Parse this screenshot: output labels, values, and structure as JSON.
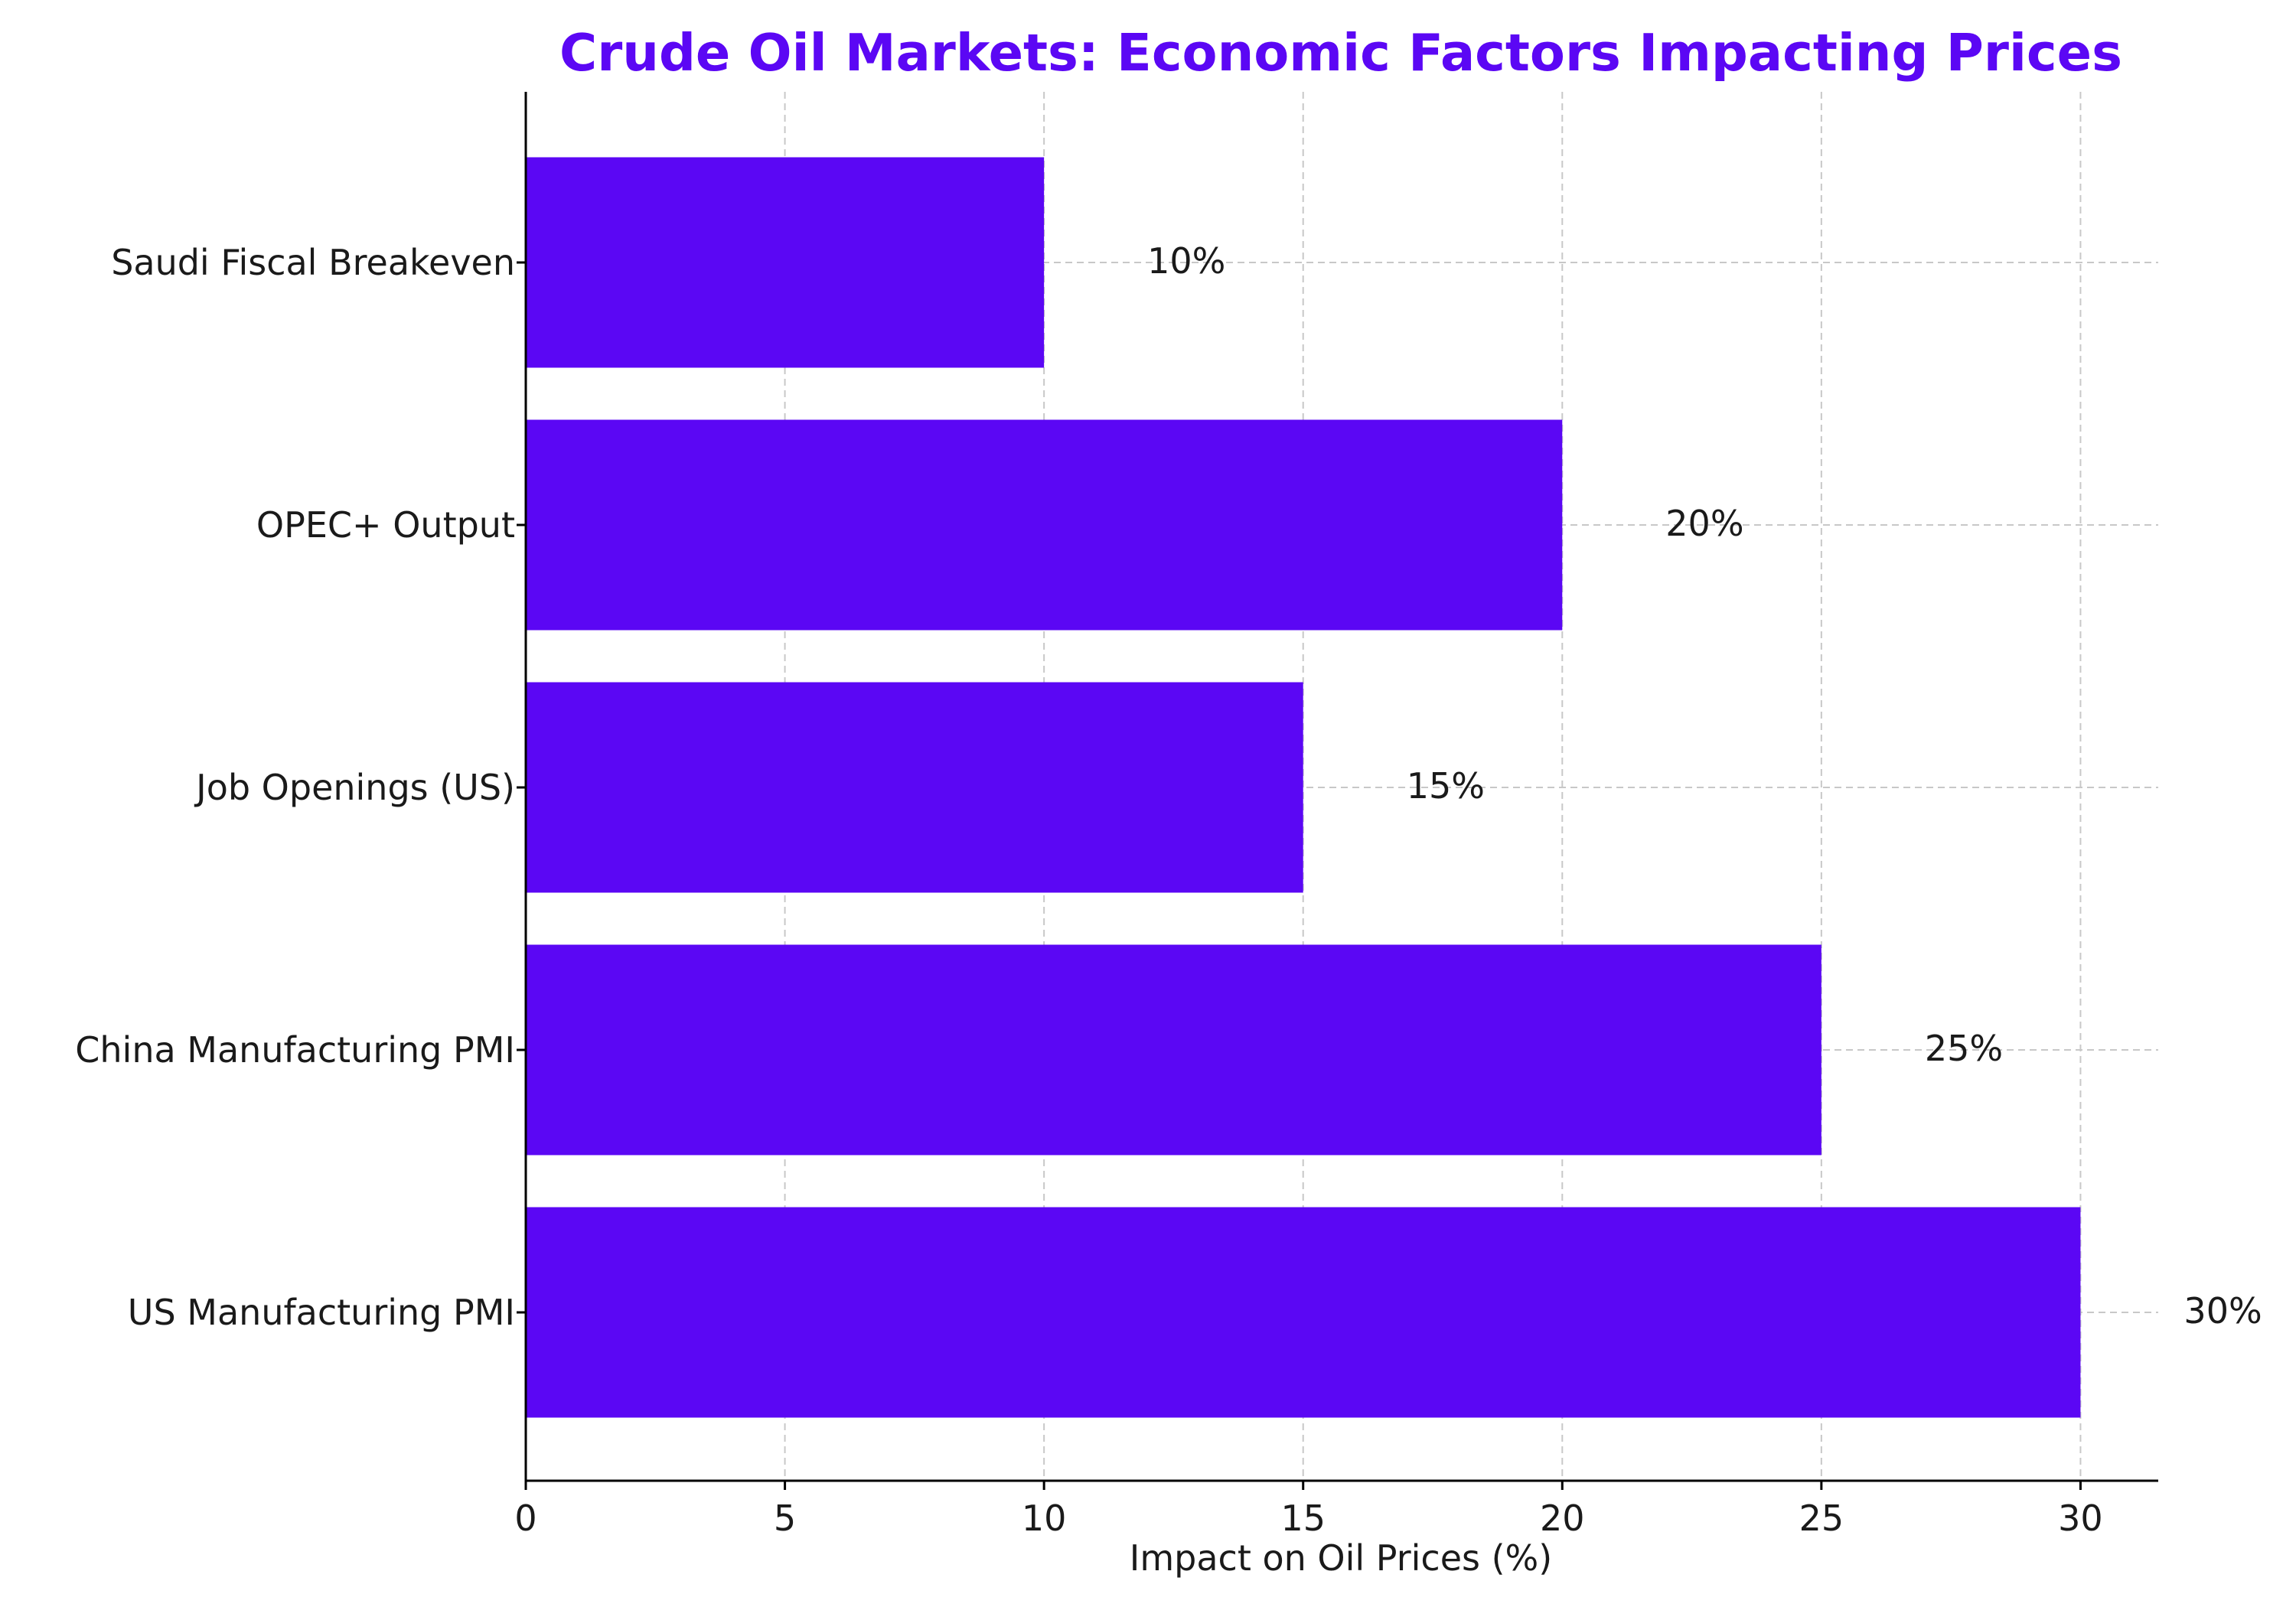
{
  "chart_data": {
    "type": "bar",
    "orientation": "horizontal",
    "title": "Crude Oil Markets: Economic Factors Impacting Prices",
    "xlabel": "Impact on Oil Prices (%)",
    "ylabel": "",
    "categories": [
      "US Manufacturing PMI",
      "China Manufacturing PMI",
      "Job Openings (US)",
      "OPEC+ Output",
      "Saudi Fiscal Breakeven"
    ],
    "values": [
      30,
      25,
      15,
      20,
      10
    ],
    "value_labels": [
      "30%",
      "25%",
      "15%",
      "20%",
      "10%"
    ],
    "xlim": [
      0,
      31.5
    ],
    "x_ticks": [
      0,
      5,
      10,
      15,
      20,
      25,
      30
    ],
    "x_tick_labels": [
      "0",
      "5",
      "10",
      "15",
      "20",
      "25",
      "30"
    ],
    "grid": true,
    "legend": "none",
    "colors": {
      "bar": "#5b07f4",
      "title": "#5b07f4",
      "grid": "#c8c8c8",
      "axis": "#000000",
      "text": "#1a1a1a"
    }
  }
}
